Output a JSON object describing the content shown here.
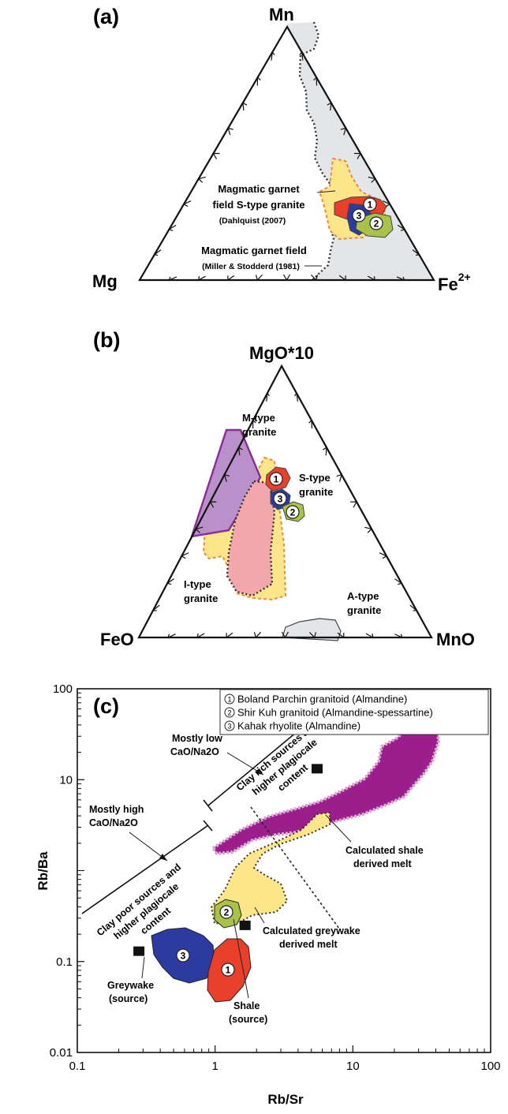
{
  "panels": {
    "a": {
      "label": "(a)",
      "apex_top": "Mn",
      "apex_left": "Mg",
      "apex_right_base": "Fe",
      "apex_right_sup": "2+",
      "field_s_line1": "Magmatic garnet",
      "field_s_line2": "field S-type granite",
      "field_s_ref": "(Dahlquist  (2007)",
      "field_m_line1": "Magmatic garnet field",
      "field_m_ref": "(Miller & Stodderd (1981)"
    },
    "b": {
      "label": "(b)",
      "apex_top": "MgO*10",
      "apex_left": "FeO",
      "apex_right": "MnO",
      "mtype_1": "M-type",
      "mtype_2": "granite",
      "stype_1": "S-type",
      "stype_2": "granite",
      "itype_1": "I-type",
      "itype_2": "granite",
      "atype_1": "A-type",
      "atype_2": "granite"
    },
    "c": {
      "label": "(c)",
      "legend": [
        {
          "num": "1",
          "text": "Boland Parchin granitoid (Almandine)"
        },
        {
          "num": "2",
          "text": "Shir Kuh granitoid (Almandine-spessartine)"
        },
        {
          "num": "3",
          "text": "Kahak rhyolite (Almandine)"
        }
      ],
      "low_1": "Mostly low",
      "low_2": "CaO/Na2O",
      "high_1": "Mostly high",
      "high_2": "CaO/Na2O",
      "rich_1": "Clay rich sources and",
      "rich_2": "higher plagiocale",
      "rich_3": "content",
      "poor_1": "Clay poor sources and",
      "poor_2": "higher plagiocale",
      "poor_3": "content",
      "shale_melt_1": "Calculated shale",
      "shale_melt_2": "derived melt",
      "grey_melt_1": "Calculated greywake",
      "grey_melt_2": "derived melt",
      "grey_src_1": "Greywake",
      "grey_src_2": "(source)",
      "shale_src_1": "Shale",
      "shale_src_2": "(source)"
    }
  },
  "markers": [
    "1",
    "2",
    "3"
  ],
  "colors": {
    "red": "#e8402a",
    "green": "#a9c24a",
    "blue": "#2d3aa0",
    "yellow": "#fde58a",
    "purple": "#b990c9",
    "pink": "#f2a7ab",
    "grey_field": "#e3e6e8",
    "magenta": "#9c1e8c"
  },
  "chart_data": [
    {
      "type": "ternary",
      "panel": "(a)",
      "apices": [
        "Mn",
        "Mg",
        "Fe2+"
      ]
    },
    {
      "type": "ternary",
      "panel": "(b)",
      "apices": [
        "MgO*10",
        "FeO",
        "MnO"
      ]
    },
    {
      "type": "scatter",
      "panel": "(c)",
      "xlabel": "Rb/Sr",
      "ylabel": "Rb/Ba",
      "xscale": "log",
      "yscale": "log",
      "xlim": [
        0.1,
        100
      ],
      "ylim": [
        0.01,
        100
      ],
      "x_ticks": [
        "0.1",
        "1",
        "10",
        "100"
      ],
      "y_ticks": [
        "0.01",
        "0.1",
        "10",
        "100"
      ],
      "points": [
        {
          "name": "Greywake (source)",
          "x": 0.28,
          "y": 0.13
        },
        {
          "name": "Shale (source)",
          "x": 1.65,
          "y": 0.25
        },
        {
          "name": "Calculated greywake derived melt",
          "x": 1.7,
          "y": 0.24
        },
        {
          "name": "Calculated shale derived melt",
          "x": 5.5,
          "y": 13.2
        }
      ]
    }
  ]
}
